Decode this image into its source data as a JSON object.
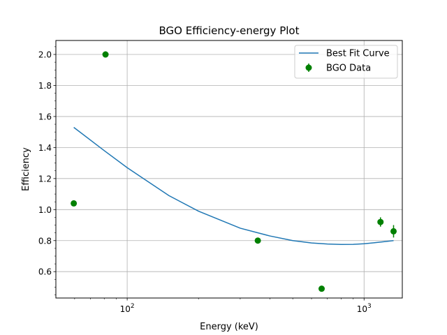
{
  "chart_data": {
    "type": "scatter",
    "title": "BGO Efficiency-energy Plot",
    "xlabel": "Energy (keV)",
    "ylabel": "Efficiency",
    "xscale": "log",
    "xlim": [
      50,
      1450
    ],
    "ylim": [
      0.43,
      2.09
    ],
    "grid": true,
    "legend_position": "top-right",
    "x_ticks": [
      {
        "value": 100,
        "base": "10",
        "exp": "2"
      },
      {
        "value": 1000,
        "base": "10",
        "exp": "3"
      }
    ],
    "y_ticks": [
      0.6,
      0.8,
      1.0,
      1.2,
      1.4,
      1.6,
      1.8,
      2.0
    ],
    "y_tick_labels": [
      "0.6",
      "0.8",
      "1.0",
      "1.2",
      "1.4",
      "1.6",
      "1.8",
      "2.0"
    ],
    "series": [
      {
        "name": "BGO Data",
        "kind": "errorbar",
        "color": "#008000",
        "x": [
          59.5,
          81.0,
          356.0,
          662.0,
          1173.0,
          1332.0
        ],
        "y": [
          1.04,
          2.0,
          0.8,
          0.49,
          0.92,
          0.86
        ],
        "yerr": [
          0.01,
          0.02,
          0.01,
          0.01,
          0.03,
          0.04
        ]
      },
      {
        "name": "Best Fit Curve",
        "kind": "line",
        "color": "#1f77b4",
        "x": [
          59.5,
          80,
          100,
          150,
          200,
          300,
          400,
          500,
          600,
          700,
          800,
          900,
          1000,
          1100,
          1200,
          1332
        ],
        "y": [
          1.53,
          1.38,
          1.27,
          1.09,
          0.99,
          0.88,
          0.83,
          0.8,
          0.785,
          0.778,
          0.775,
          0.776,
          0.78,
          0.786,
          0.792,
          0.8
        ]
      }
    ]
  }
}
